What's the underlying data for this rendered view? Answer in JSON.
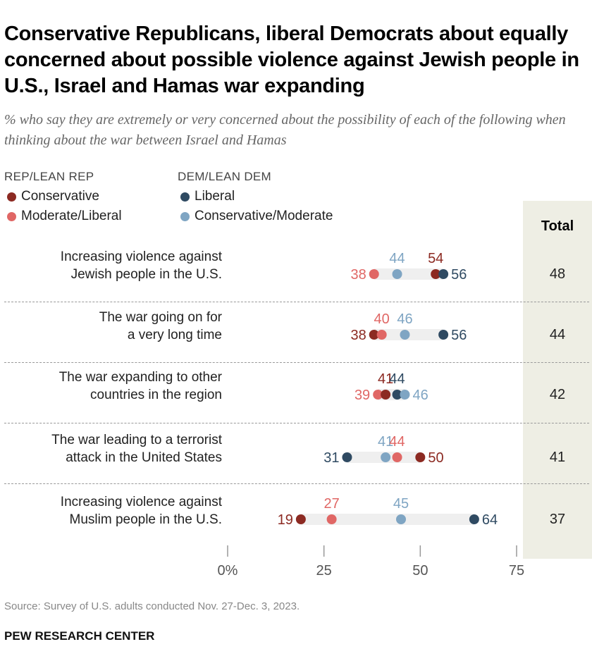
{
  "title": "Conservative Republicans, liberal Democrats about equally concerned about possible violence against Jewish people in U.S., Israel and Hamas war expanding",
  "subtitle": "% who say they are extremely or very concerned about the possibility of each of the following when thinking about the war between Israel and Hamas",
  "source": "Source: Survey of U.S. adults conducted Nov. 27-Dec. 3, 2023.",
  "brand": "PEW RESEARCH CENTER",
  "chart_data": {
    "type": "dot",
    "legend": {
      "groups": [
        {
          "title": "REP/LEAN REP",
          "items": [
            "Conservative",
            "Moderate/Liberal"
          ]
        },
        {
          "title": "DEM/LEAN DEM",
          "items": [
            "Liberal",
            "Conservative/Moderate"
          ]
        }
      ],
      "placement": "top-left"
    },
    "colors": {
      "Conservative": "#8c2a22",
      "Moderate/Liberal": "#e06765",
      "Liberal": "#2f4a62",
      "Conservative/Moderate": "#7fa5c3"
    },
    "total_header": "Total",
    "categories": [
      "Increasing violence against Jewish people in the U.S.",
      "The war going on for a very long time",
      "The war expanding to other countries in the region",
      "The war leading to a terrorist attack in the United States",
      "Increasing violence against Muslim people in the U.S."
    ],
    "category_lines": [
      [
        "Increasing violence against",
        "Jewish people in the U.S."
      ],
      [
        "The war going on for",
        "a very long time"
      ],
      [
        "The war expanding to other",
        "countries in the region"
      ],
      [
        "The war leading to a terrorist",
        "attack in the United States"
      ],
      [
        "Increasing violence against",
        "Muslim people in the U.S."
      ]
    ],
    "series": [
      {
        "name": "Conservative",
        "values": [
          54,
          38,
          41,
          50,
          19
        ]
      },
      {
        "name": "Moderate/Liberal",
        "values": [
          38,
          40,
          39,
          44,
          27
        ]
      },
      {
        "name": "Liberal",
        "values": [
          56,
          56,
          44,
          31,
          64
        ]
      },
      {
        "name": "Conservative/Moderate",
        "values": [
          44,
          46,
          46,
          41,
          45
        ]
      }
    ],
    "total": [
      48,
      44,
      42,
      41,
      37
    ],
    "xlim": [
      0,
      75
    ],
    "xticks": [
      "0%",
      "25",
      "50",
      "75"
    ],
    "xtick_values": [
      0,
      25,
      50,
      75
    ],
    "grid": false
  }
}
